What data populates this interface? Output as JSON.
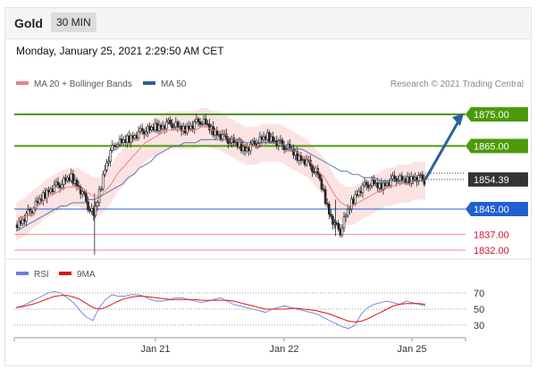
{
  "header": {
    "title": "Gold",
    "timeframe": "30 MIN",
    "datetime": "Monday, January 25, 2021 2:29:50 AM CET"
  },
  "legend": {
    "items": [
      {
        "label": "MA 20 + Bollinger Bands",
        "color": "#f08080"
      },
      {
        "label": "MA 50",
        "color": "#2f5d9a"
      }
    ],
    "credit": "Research © 2021 Trading Central"
  },
  "rsi_legend": {
    "items": [
      {
        "label": "RSI",
        "color": "#6a7fd6"
      },
      {
        "label": "9MA",
        "color": "#e01010"
      }
    ]
  },
  "chart_data": [
    {
      "type": "candlestick",
      "title": "Gold",
      "timeframe": "30 MIN",
      "x_ticks": [
        "Jan 21",
        "Jan 22",
        "Jan 25"
      ],
      "ylim": [
        1830,
        1880
      ],
      "last_price": 1854.39,
      "levels": [
        {
          "value": 1875.0,
          "label": "1875.00",
          "kind": "resistance",
          "color": "#4a9a0a"
        },
        {
          "value": 1865.0,
          "label": "1865.00",
          "kind": "resistance",
          "color": "#4a9a0a"
        },
        {
          "value": 1854.39,
          "label": "1854.39",
          "kind": "last",
          "color": "#333333"
        },
        {
          "value": 1845.0,
          "label": "1845.00",
          "kind": "pivot",
          "color": "#2060d0"
        },
        {
          "value": 1837.0,
          "label": "1837.00",
          "kind": "support",
          "color": "#d0112b"
        },
        {
          "value": 1832.0,
          "label": "1832.00",
          "kind": "support",
          "color": "#d0112b"
        }
      ],
      "arrow": {
        "from": 1854.39,
        "to": 1875.0,
        "direction": "up",
        "color": "#2d5f9a"
      },
      "close_path": [
        1840,
        1841,
        1843,
        1845,
        1847,
        1849,
        1851,
        1852,
        1853,
        1854,
        1855,
        1853,
        1850,
        1846,
        1843,
        1850,
        1858,
        1863,
        1866,
        1866,
        1867,
        1868,
        1869,
        1870,
        1870,
        1871,
        1871,
        1872,
        1872,
        1871,
        1870,
        1871,
        1872,
        1873,
        1872,
        1870,
        1869,
        1868,
        1867,
        1866,
        1865,
        1864,
        1865,
        1866,
        1867,
        1868,
        1867,
        1866,
        1865,
        1864,
        1862,
        1861,
        1860,
        1858,
        1856,
        1850,
        1844,
        1840,
        1838,
        1843,
        1847,
        1850,
        1852,
        1853,
        1853,
        1852,
        1853,
        1854,
        1855,
        1854,
        1854,
        1855,
        1855,
        1854
      ],
      "ma20": [
        1841,
        1842,
        1843,
        1845,
        1846,
        1848,
        1849,
        1850,
        1851,
        1852,
        1852,
        1852,
        1851,
        1850,
        1849,
        1849,
        1851,
        1853,
        1856,
        1858,
        1860,
        1862,
        1864,
        1866,
        1867,
        1868,
        1869,
        1870,
        1870,
        1870,
        1870,
        1870,
        1870,
        1871,
        1871,
        1870,
        1870,
        1869,
        1868,
        1867,
        1866,
        1865,
        1865,
        1865,
        1866,
        1866,
        1866,
        1866,
        1865,
        1864,
        1863,
        1862,
        1861,
        1859,
        1857,
        1855,
        1852,
        1849,
        1847,
        1846,
        1846,
        1847,
        1848,
        1849,
        1850,
        1851,
        1852,
        1852,
        1853,
        1853,
        1853,
        1854,
        1854,
        1854
      ],
      "ma50": [
        1838,
        1839,
        1840,
        1841,
        1842,
        1843,
        1844,
        1845,
        1846,
        1846,
        1847,
        1847,
        1847,
        1848,
        1848,
        1849,
        1850,
        1851,
        1852,
        1853,
        1855,
        1856,
        1858,
        1859,
        1860,
        1862,
        1863,
        1864,
        1865,
        1865,
        1866,
        1866,
        1866,
        1867,
        1867,
        1867,
        1867,
        1867,
        1867,
        1867,
        1867,
        1866,
        1866,
        1866,
        1866,
        1866,
        1866,
        1866,
        1865,
        1865,
        1864,
        1864,
        1863,
        1862,
        1861,
        1860,
        1859,
        1858,
        1857,
        1857,
        1856,
        1856,
        1855,
        1855,
        1855,
        1854,
        1854,
        1854,
        1854,
        1854,
        1854,
        1854,
        1854,
        1854
      ]
    },
    {
      "type": "line",
      "title": "RSI",
      "series": [
        {
          "name": "RSI",
          "values": [
            52,
            54,
            58,
            62,
            66,
            70,
            72,
            70,
            64,
            58,
            48,
            40,
            36,
            52,
            62,
            68,
            66,
            66,
            68,
            68,
            66,
            62,
            60,
            60,
            62,
            64,
            64,
            62,
            60,
            58,
            60,
            62,
            64,
            60,
            56,
            54,
            52,
            50,
            48,
            46,
            50,
            52,
            54,
            52,
            50,
            48,
            46,
            44,
            40,
            36,
            32,
            28,
            26,
            30,
            44,
            52,
            56,
            58,
            60,
            58,
            56,
            60,
            58,
            56,
            54
          ]
        },
        {
          "name": "9MA",
          "values": [
            52,
            53,
            55,
            57,
            60,
            63,
            66,
            67,
            67,
            65,
            62,
            57,
            52,
            50,
            52,
            56,
            60,
            63,
            65,
            66,
            66,
            65,
            64,
            63,
            62,
            62,
            62,
            62,
            62,
            61,
            61,
            61,
            61,
            61,
            60,
            58,
            56,
            54,
            52,
            50,
            50,
            50,
            50,
            51,
            51,
            50,
            49,
            48,
            46,
            44,
            41,
            38,
            35,
            34,
            35,
            38,
            42,
            46,
            50,
            54,
            56,
            57,
            57,
            57,
            56
          ]
        }
      ],
      "y_ticks": [
        30,
        50,
        70
      ],
      "ylim": [
        20,
        80
      ]
    }
  ]
}
